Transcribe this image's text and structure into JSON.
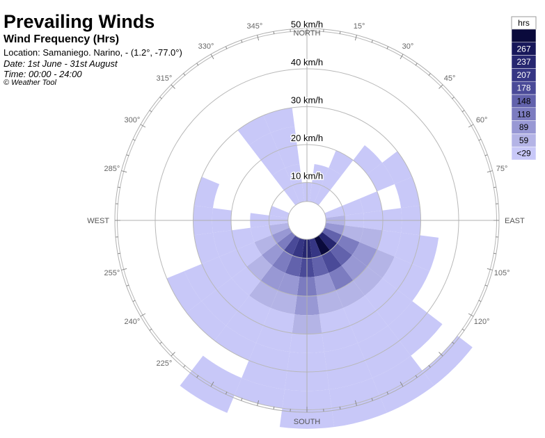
{
  "header": {
    "title": "Prevailing Winds",
    "subtitle": "Wind Frequency (Hrs)",
    "location": "Location: Samaniego. Narino, - (1.2°, -77.0°)",
    "date": "Date: 1st June - 31st August",
    "time": "Time: 00:00 - 24:00",
    "copyright": "© Weather Tool"
  },
  "chart_data": {
    "type": "polar-bar",
    "title": "Prevailing Winds",
    "subtitle": "Wind Frequency (Hrs)",
    "radial_unit": "km/h",
    "ring_labels": [
      "10 km/h",
      "20 km/h",
      "30 km/h",
      "40 km/h",
      "50 km/h"
    ],
    "ring_values": [
      10,
      20,
      30,
      40,
      50
    ],
    "r_inner": 5,
    "r_max": 50,
    "sector_width_deg": 15,
    "cardinal_labels": [
      {
        "deg": 0,
        "label": "NORTH"
      },
      {
        "deg": 90,
        "label": "EAST"
      },
      {
        "deg": 180,
        "label": "SOUTH"
      },
      {
        "deg": 270,
        "label": "WEST"
      }
    ],
    "angle_labels": [
      {
        "deg": 15,
        "label": "15°"
      },
      {
        "deg": 30,
        "label": "30°"
      },
      {
        "deg": 45,
        "label": "45°"
      },
      {
        "deg": 60,
        "label": "60°"
      },
      {
        "deg": 75,
        "label": "75°"
      },
      {
        "deg": 105,
        "label": "105°"
      },
      {
        "deg": 120,
        "label": "120°"
      },
      {
        "deg": 225,
        "label": "225°"
      },
      {
        "deg": 240,
        "label": "240°"
      },
      {
        "deg": 255,
        "label": "255°"
      },
      {
        "deg": 285,
        "label": "285°"
      },
      {
        "deg": 300,
        "label": "300°"
      },
      {
        "deg": 315,
        "label": "315°"
      },
      {
        "deg": 330,
        "label": "330°"
      },
      {
        "deg": 345,
        "label": "345°"
      }
    ],
    "legend": {
      "title": "hrs",
      "placement": "top-right",
      "labels": [
        "",
        "267",
        "237",
        "207",
        "178",
        "148",
        "118",
        "89",
        "59",
        "<29"
      ],
      "colors": [
        "#0a0a3c",
        "#17175a",
        "#262670",
        "#363684",
        "#4a4a98",
        "#6262ac",
        "#7c7cc0",
        "#9898d4",
        "#b4b4e6",
        "#c8c8f8"
      ]
    },
    "sectors": [
      {
        "dir": 0,
        "bins": [
          [
            5,
            10,
            9
          ]
        ]
      },
      {
        "dir": 15,
        "bins": [
          [
            5,
            10,
            9
          ],
          [
            10,
            15,
            9
          ]
        ]
      },
      {
        "dir": 30,
        "bins": [
          [
            5,
            10,
            9
          ],
          [
            10,
            15,
            9
          ],
          [
            15,
            20,
            9
          ]
        ]
      },
      {
        "dir": 45,
        "bins": [
          [
            20,
            25,
            9
          ]
        ]
      },
      {
        "dir": 60,
        "bins": [
          [
            20,
            25,
            9
          ],
          [
            25,
            30,
            9
          ]
        ]
      },
      {
        "dir": 75,
        "bins": [
          [
            5,
            10,
            9
          ],
          [
            10,
            15,
            9
          ],
          [
            15,
            20,
            9
          ],
          [
            25,
            30,
            9
          ]
        ]
      },
      {
        "dir": 90,
        "bins": [
          [
            5,
            10,
            8
          ],
          [
            10,
            15,
            9
          ],
          [
            15,
            20,
            9
          ],
          [
            20,
            25,
            9
          ],
          [
            25,
            30,
            9
          ]
        ]
      },
      {
        "dir": 105,
        "bins": [
          [
            5,
            10,
            7
          ],
          [
            10,
            15,
            8
          ],
          [
            15,
            20,
            8
          ],
          [
            20,
            25,
            9
          ],
          [
            25,
            30,
            9
          ],
          [
            30,
            35,
            9
          ]
        ]
      },
      {
        "dir": 120,
        "bins": [
          [
            5,
            10,
            5
          ],
          [
            10,
            15,
            6
          ],
          [
            15,
            20,
            7
          ],
          [
            20,
            25,
            8
          ],
          [
            25,
            30,
            9
          ],
          [
            30,
            35,
            9
          ]
        ]
      },
      {
        "dir": 135,
        "bins": [
          [
            5,
            10,
            2
          ],
          [
            10,
            15,
            5
          ],
          [
            15,
            20,
            7
          ],
          [
            20,
            25,
            8
          ],
          [
            25,
            30,
            9
          ],
          [
            30,
            35,
            9
          ],
          [
            35,
            40,
            9
          ],
          [
            40,
            45,
            9
          ],
          [
            50,
            55,
            9
          ]
        ]
      },
      {
        "dir": 150,
        "bins": [
          [
            5,
            10,
            0
          ],
          [
            10,
            15,
            4
          ],
          [
            15,
            20,
            6
          ],
          [
            20,
            25,
            8
          ],
          [
            25,
            30,
            9
          ],
          [
            30,
            35,
            9
          ],
          [
            35,
            40,
            9
          ],
          [
            40,
            45,
            9
          ],
          [
            45,
            50,
            9
          ],
          [
            50,
            55,
            9
          ]
        ]
      },
      {
        "dir": 165,
        "bins": [
          [
            5,
            10,
            3
          ],
          [
            10,
            15,
            5
          ],
          [
            15,
            20,
            7
          ],
          [
            20,
            25,
            8
          ],
          [
            25,
            30,
            9
          ],
          [
            30,
            35,
            9
          ],
          [
            35,
            40,
            9
          ],
          [
            40,
            45,
            9
          ],
          [
            45,
            50,
            9
          ],
          [
            50,
            55,
            9
          ]
        ]
      },
      {
        "dir": 180,
        "bins": [
          [
            5,
            10,
            2
          ],
          [
            10,
            15,
            4
          ],
          [
            15,
            20,
            6
          ],
          [
            20,
            25,
            7
          ],
          [
            25,
            30,
            8
          ],
          [
            30,
            35,
            9
          ],
          [
            35,
            40,
            9
          ],
          [
            40,
            45,
            9
          ],
          [
            45,
            50,
            9
          ],
          [
            50,
            55,
            9
          ]
        ]
      },
      {
        "dir": 195,
        "bins": [
          [
            5,
            10,
            3
          ],
          [
            10,
            15,
            5
          ],
          [
            15,
            20,
            7
          ],
          [
            20,
            25,
            8
          ],
          [
            25,
            30,
            9
          ],
          [
            30,
            35,
            9
          ],
          [
            35,
            40,
            9
          ],
          [
            40,
            45,
            9
          ],
          [
            45,
            50,
            9
          ]
        ]
      },
      {
        "dir": 210,
        "bins": [
          [
            5,
            10,
            4
          ],
          [
            10,
            15,
            6
          ],
          [
            15,
            20,
            7
          ],
          [
            20,
            25,
            8
          ],
          [
            25,
            30,
            9
          ],
          [
            30,
            35,
            9
          ],
          [
            35,
            40,
            9
          ],
          [
            45,
            50,
            9
          ],
          [
            50,
            55,
            9
          ]
        ]
      },
      {
        "dir": 225,
        "bins": [
          [
            5,
            10,
            6
          ],
          [
            10,
            15,
            7
          ],
          [
            15,
            20,
            8
          ],
          [
            20,
            25,
            9
          ],
          [
            25,
            30,
            9
          ],
          [
            30,
            35,
            9
          ],
          [
            35,
            40,
            9
          ]
        ]
      },
      {
        "dir": 240,
        "bins": [
          [
            5,
            10,
            7
          ],
          [
            10,
            15,
            8
          ],
          [
            15,
            20,
            9
          ],
          [
            20,
            25,
            9
          ],
          [
            25,
            30,
            9
          ],
          [
            30,
            35,
            9
          ],
          [
            35,
            40,
            9
          ]
        ]
      },
      {
        "dir": 255,
        "bins": [
          [
            5,
            10,
            8
          ],
          [
            10,
            15,
            9
          ],
          [
            15,
            20,
            9
          ],
          [
            20,
            25,
            9
          ],
          [
            25,
            30,
            9
          ]
        ]
      },
      {
        "dir": 270,
        "bins": [
          [
            5,
            10,
            9
          ],
          [
            10,
            15,
            9
          ],
          [
            20,
            25,
            9
          ],
          [
            25,
            30,
            9
          ]
        ]
      },
      {
        "dir": 285,
        "bins": [
          [
            5,
            10,
            9
          ],
          [
            25,
            30,
            9
          ]
        ]
      },
      {
        "dir": 330,
        "bins": [
          [
            5,
            10,
            9
          ],
          [
            10,
            15,
            9
          ],
          [
            15,
            20,
            9
          ],
          [
            20,
            25,
            9
          ],
          [
            25,
            30,
            9
          ]
        ]
      },
      {
        "dir": 345,
        "bins": [
          [
            5,
            10,
            9
          ],
          [
            10,
            15,
            9
          ],
          [
            15,
            20,
            9
          ],
          [
            20,
            25,
            9
          ],
          [
            25,
            30,
            9
          ]
        ]
      }
    ]
  }
}
